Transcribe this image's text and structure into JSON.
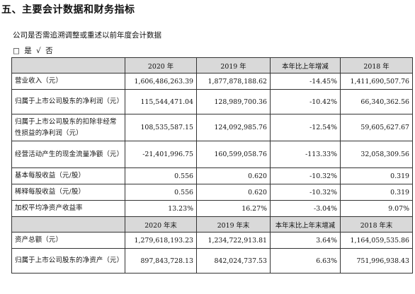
{
  "section_title": "五、主要会计数据和财务指标",
  "question": "公司是否需追溯调整或重述以前年度会计数据",
  "answer": {
    "box_mark": "□",
    "yes_label": "是",
    "check_mark": "√",
    "no_label": "否"
  },
  "table": {
    "header1": [
      "",
      "2020 年",
      "2019 年",
      "本年比上年增减",
      "2018 年"
    ],
    "rows1": [
      [
        "营业收入（元）",
        "1,606,486,263.39",
        "1,877,878,188.62",
        "-14.45%",
        "1,411,690,507.76"
      ],
      [
        "归属于上市公司股东的净利润（元）",
        "115,544,471.04",
        "128,989,700.36",
        "-10.42%",
        "66,340,362.56"
      ],
      [
        "归属于上市公司股东的扣除非经常性损益的净利润（元）",
        "108,535,587.15",
        "124,092,985.76",
        "-12.54%",
        "59,605,627.67"
      ],
      [
        "经营活动产生的现金流量净额（元）",
        "-21,401,996.75",
        "160,599,058.76",
        "-113.33%",
        "32,058,309.56"
      ],
      [
        "基本每股收益（元/股）",
        "0.556",
        "0.620",
        "-10.32%",
        "0.319"
      ],
      [
        "稀释每股收益（元/股）",
        "0.556",
        "0.620",
        "-10.32%",
        "0.319"
      ],
      [
        "加权平均净资产收益率",
        "13.23%",
        "16.27%",
        "-3.04%",
        "9.07%"
      ]
    ],
    "header2": [
      "",
      "2020 年末",
      "2019 年末",
      "本年末比上年末增减",
      "2018 年末"
    ],
    "rows2": [
      [
        "资产总额（元）",
        "1,279,618,193.23",
        "1,234,722,913.81",
        "3.64%",
        "1,164,059,535.86"
      ],
      [
        "归属于上市公司股东的净资产（元）",
        "897,843,728.13",
        "842,024,737.53",
        "6.63%",
        "751,996,938.43"
      ]
    ]
  }
}
